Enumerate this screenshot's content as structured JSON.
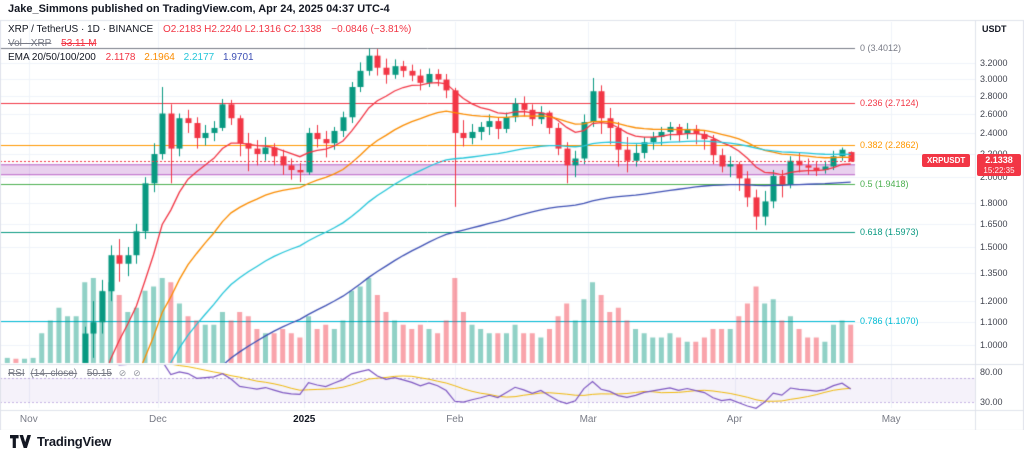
{
  "attribution": "Jake_Simmons published on TradingView.com, Apr 24, 2025 04:37 UTC-4",
  "legend": {
    "title": "XRP / TetherUS · 1D · BINANCE",
    "ohlc": "O2.2183  H2.2240  L2.1316  C2.1338",
    "change": "−0.0846 (−3.81%)",
    "volume": {
      "label": "Vol · XRP",
      "value": "53.11 M"
    },
    "ema": {
      "label": "EMA 20/50/100/200",
      "values": [
        "2.1178",
        "2.1964",
        "2.2177",
        "1.9701"
      ]
    }
  },
  "rsi_legend": {
    "label": "RSI",
    "params": "(14, close)",
    "value": "50.15",
    "hide_icon": "⊘"
  },
  "axis": {
    "currency": "USDT",
    "price_labels": [
      {
        "t": "3.2000",
        "p": 3.2
      },
      {
        "t": "3.0000",
        "p": 3.0
      },
      {
        "t": "2.8000",
        "p": 2.8
      },
      {
        "t": "2.6000",
        "p": 2.6
      },
      {
        "t": "2.4000",
        "p": 2.4
      },
      {
        "t": "2.2000",
        "p": 2.2
      },
      {
        "t": "2.0000",
        "p": 2.0
      },
      {
        "t": "1.8000",
        "p": 1.8
      },
      {
        "t": "1.6500",
        "p": 1.65
      },
      {
        "t": "1.5000",
        "p": 1.5
      },
      {
        "t": "1.3500",
        "p": 1.35
      },
      {
        "t": "1.2000",
        "p": 1.2
      },
      {
        "t": "1.1000",
        "p": 1.1
      },
      {
        "t": "1.0000",
        "p": 1.0
      }
    ],
    "rsi_labels": [
      {
        "t": "80.00",
        "v": 80
      },
      {
        "t": "30.00",
        "v": 30
      }
    ],
    "time_labels": [
      {
        "label": "Nov",
        "i": 2.5
      },
      {
        "label": "Dec",
        "i": 17.5
      },
      {
        "label": "2025",
        "i": 34.5,
        "emphasis": true
      },
      {
        "label": "Feb",
        "i": 52
      },
      {
        "label": "Mar",
        "i": 67.5
      },
      {
        "label": "Apr",
        "i": 84.5
      },
      {
        "label": "May",
        "i": 102.7
      }
    ]
  },
  "price_badge": {
    "symbol": "XRPUSDT",
    "price": "2.1338",
    "countdown": "15:22:35",
    "color": "#f23645"
  },
  "footer": {
    "brand": "TradingView"
  },
  "chart_data": {
    "type": "candlestick",
    "symbol": "XRPUSDT",
    "exchange": "BINANCE",
    "interval": "1D",
    "scale": "log",
    "price_range": [
      0.93,
      3.52
    ],
    "up_color": "#089981",
    "down_color": "#f23645",
    "grid_color": "#f0f3fa",
    "frame_color": "#e0e3eb",
    "last_price": 2.1338,
    "last_price_line_color": "#f23645",
    "candles_format": [
      "open",
      "high",
      "low",
      "close",
      "rel_volume"
    ],
    "candles": [
      [
        0.52,
        0.53,
        0.5,
        0.52,
        0.06
      ],
      [
        0.52,
        0.53,
        0.5,
        0.51,
        0.05
      ],
      [
        0.51,
        0.52,
        0.49,
        0.51,
        0.05
      ],
      [
        0.51,
        0.53,
        0.5,
        0.52,
        0.06
      ],
      [
        0.52,
        0.57,
        0.51,
        0.55,
        0.35
      ],
      [
        0.55,
        0.62,
        0.54,
        0.6,
        0.5
      ],
      [
        0.6,
        0.73,
        0.59,
        0.69,
        0.65
      ],
      [
        0.69,
        0.76,
        0.65,
        0.72,
        0.55
      ],
      [
        0.72,
        0.83,
        0.7,
        0.8,
        0.55
      ],
      [
        0.8,
        1.08,
        0.79,
        1.05,
        0.95
      ],
      [
        1.05,
        1.2,
        0.95,
        1.1,
        1.0
      ],
      [
        1.1,
        1.31,
        1.05,
        1.25,
        0.85
      ],
      [
        1.25,
        1.51,
        1.2,
        1.45,
        0.95
      ],
      [
        1.45,
        1.55,
        1.3,
        1.4,
        0.8
      ],
      [
        1.4,
        1.5,
        1.33,
        1.45,
        0.6
      ],
      [
        1.45,
        1.65,
        1.4,
        1.6,
        0.65
      ],
      [
        1.6,
        2.0,
        1.55,
        1.95,
        0.85
      ],
      [
        1.95,
        2.3,
        1.88,
        2.2,
        0.9
      ],
      [
        2.2,
        2.9,
        2.15,
        2.6,
        1.0
      ],
      [
        2.6,
        2.7,
        1.95,
        2.25,
        0.95
      ],
      [
        2.25,
        2.6,
        2.18,
        2.55,
        0.7
      ],
      [
        2.55,
        2.64,
        2.4,
        2.5,
        0.55
      ],
      [
        2.5,
        2.56,
        2.25,
        2.35,
        0.5
      ],
      [
        2.35,
        2.48,
        2.28,
        2.4,
        0.45
      ],
      [
        2.4,
        2.52,
        2.32,
        2.45,
        0.45
      ],
      [
        2.45,
        2.76,
        2.42,
        2.7,
        0.6
      ],
      [
        2.7,
        2.75,
        2.48,
        2.55,
        0.5
      ],
      [
        2.55,
        2.58,
        2.18,
        2.3,
        0.6
      ],
      [
        2.3,
        2.4,
        2.05,
        2.25,
        0.55
      ],
      [
        2.25,
        2.33,
        2.1,
        2.2,
        0.4
      ],
      [
        2.2,
        2.36,
        2.14,
        2.26,
        0.35
      ],
      [
        2.26,
        2.3,
        2.1,
        2.18,
        0.35
      ],
      [
        2.18,
        2.24,
        2.02,
        2.1,
        0.4
      ],
      [
        2.1,
        2.16,
        1.98,
        2.06,
        0.35
      ],
      [
        2.06,
        2.12,
        1.96,
        2.04,
        0.3
      ],
      [
        2.04,
        2.45,
        2.02,
        2.4,
        0.55
      ],
      [
        2.4,
        2.48,
        2.26,
        2.34,
        0.4
      ],
      [
        2.34,
        2.42,
        2.17,
        2.3,
        0.45
      ],
      [
        2.3,
        2.46,
        2.24,
        2.42,
        0.4
      ],
      [
        2.42,
        2.62,
        2.36,
        2.56,
        0.5
      ],
      [
        2.56,
        2.96,
        2.5,
        2.9,
        0.85
      ],
      [
        2.9,
        3.21,
        2.84,
        3.1,
        0.9
      ],
      [
        3.1,
        3.4,
        3.04,
        3.3,
        1.0
      ],
      [
        3.3,
        3.39,
        3.04,
        3.14,
        0.8
      ],
      [
        3.14,
        3.26,
        2.94,
        3.05,
        0.6
      ],
      [
        3.05,
        3.25,
        3.0,
        3.16,
        0.5
      ],
      [
        3.16,
        3.23,
        3.02,
        3.1,
        0.45
      ],
      [
        3.1,
        3.18,
        2.97,
        3.04,
        0.4
      ],
      [
        3.04,
        3.12,
        2.86,
        2.95,
        0.45
      ],
      [
        2.95,
        3.13,
        2.9,
        3.06,
        0.4
      ],
      [
        3.06,
        3.12,
        2.91,
        2.99,
        0.35
      ],
      [
        2.99,
        3.06,
        2.77,
        2.86,
        0.5
      ],
      [
        2.86,
        2.89,
        1.77,
        2.4,
        1.0
      ],
      [
        2.4,
        2.53,
        2.27,
        2.35,
        0.6
      ],
      [
        2.35,
        2.49,
        2.29,
        2.41,
        0.45
      ],
      [
        2.41,
        2.51,
        2.33,
        2.46,
        0.4
      ],
      [
        2.46,
        2.59,
        2.38,
        2.52,
        0.35
      ],
      [
        2.52,
        2.56,
        2.34,
        2.44,
        0.35
      ],
      [
        2.44,
        2.61,
        2.4,
        2.56,
        0.35
      ],
      [
        2.56,
        2.77,
        2.51,
        2.71,
        0.45
      ],
      [
        2.71,
        2.79,
        2.57,
        2.64,
        0.35
      ],
      [
        2.64,
        2.7,
        2.47,
        2.54,
        0.35
      ],
      [
        2.54,
        2.68,
        2.49,
        2.61,
        0.3
      ],
      [
        2.61,
        2.63,
        2.39,
        2.45,
        0.4
      ],
      [
        2.45,
        2.5,
        2.19,
        2.25,
        0.55
      ],
      [
        2.25,
        2.31,
        1.95,
        2.1,
        0.7
      ],
      [
        2.1,
        2.23,
        2.0,
        2.16,
        0.5
      ],
      [
        2.16,
        2.59,
        2.11,
        2.51,
        0.75
      ],
      [
        2.51,
        3.01,
        2.46,
        2.85,
        0.95
      ],
      [
        2.85,
        2.92,
        2.39,
        2.55,
        0.8
      ],
      [
        2.55,
        2.66,
        2.29,
        2.45,
        0.6
      ],
      [
        2.45,
        2.51,
        2.09,
        2.24,
        0.65
      ],
      [
        2.24,
        2.36,
        2.04,
        2.14,
        0.5
      ],
      [
        2.14,
        2.29,
        2.09,
        2.21,
        0.4
      ],
      [
        2.21,
        2.36,
        2.16,
        2.31,
        0.35
      ],
      [
        2.31,
        2.41,
        2.24,
        2.36,
        0.3
      ],
      [
        2.36,
        2.46,
        2.28,
        2.41,
        0.3
      ],
      [
        2.41,
        2.51,
        2.33,
        2.46,
        0.35
      ],
      [
        2.46,
        2.49,
        2.31,
        2.39,
        0.3
      ],
      [
        2.39,
        2.5,
        2.34,
        2.44,
        0.25
      ],
      [
        2.44,
        2.48,
        2.29,
        2.39,
        0.25
      ],
      [
        2.39,
        2.42,
        2.24,
        2.34,
        0.3
      ],
      [
        2.34,
        2.38,
        2.11,
        2.19,
        0.4
      ],
      [
        2.19,
        2.25,
        2.04,
        2.09,
        0.4
      ],
      [
        2.09,
        2.18,
        2.0,
        2.11,
        0.4
      ],
      [
        2.11,
        2.13,
        1.89,
        1.99,
        0.55
      ],
      [
        1.99,
        2.05,
        1.77,
        1.84,
        0.7
      ],
      [
        1.84,
        1.9,
        1.61,
        1.7,
        0.9
      ],
      [
        1.7,
        1.89,
        1.64,
        1.81,
        0.7
      ],
      [
        1.81,
        2.06,
        1.76,
        2.01,
        0.75
      ],
      [
        2.01,
        2.06,
        1.84,
        1.94,
        0.5
      ],
      [
        1.94,
        2.18,
        1.91,
        2.14,
        0.55
      ],
      [
        2.14,
        2.21,
        2.04,
        2.1,
        0.4
      ],
      [
        2.1,
        2.16,
        2.02,
        2.08,
        0.3
      ],
      [
        2.08,
        2.13,
        2.01,
        2.06,
        0.3
      ],
      [
        2.06,
        2.14,
        2.03,
        2.09,
        0.25
      ],
      [
        2.09,
        2.23,
        2.06,
        2.18,
        0.45
      ],
      [
        2.18,
        2.26,
        2.14,
        2.24,
        0.5
      ],
      [
        2.2183,
        2.224,
        2.1316,
        2.1338,
        0.45
      ]
    ],
    "volume": {
      "up": "rgba(8,153,129,0.45)",
      "down": "rgba(242,54,69,0.45)",
      "last_value_label": "53.11 M"
    },
    "ema": {
      "periods": [
        20,
        50,
        100,
        200
      ],
      "render_periods": [
        11,
        28,
        55,
        111
      ],
      "colors": [
        "#f23645",
        "#fb8c00",
        "#26c6da",
        "#3f51b5"
      ],
      "last_values": [
        2.1178,
        2.1964,
        2.2177,
        1.9701
      ]
    },
    "rsi": {
      "period": 14,
      "render_period": 8,
      "last": 50.15,
      "color": "#7e57c2",
      "ma_color": "#f0b90b",
      "band": [
        30,
        70
      ],
      "range": [
        20,
        90
      ],
      "band_fill": "rgba(126,87,194,0.08)",
      "band_line": "rgba(126,87,194,0.45)"
    },
    "fib": {
      "high": 3.4012,
      "low": 0.4824,
      "levels": [
        {
          "f": "0",
          "price": 3.4012,
          "label": "0 (3.4012)",
          "color": "#787b86"
        },
        {
          "f": "0.236",
          "price": 2.7124,
          "label": "0.236 (2.7124)",
          "color": "#f23645"
        },
        {
          "f": "0.382",
          "price": 2.2862,
          "label": "0.382 (2.2862)",
          "color": "#ff9800"
        },
        {
          "f": "0.5",
          "price": 1.9418,
          "label": "0.5 (1.9418)",
          "color": "#4caf50"
        },
        {
          "f": "0.618",
          "price": 1.5973,
          "label": "0.618 (1.5973)",
          "color": "#089981"
        },
        {
          "f": "0.786",
          "price": 1.107,
          "label": "0.786 (1.1070)",
          "color": "#00bcd4"
        }
      ]
    },
    "band": {
      "top": 2.105,
      "bottom": 2.02,
      "fill": "rgba(156,39,176,0.22)",
      "border": "#9c27b0"
    }
  }
}
